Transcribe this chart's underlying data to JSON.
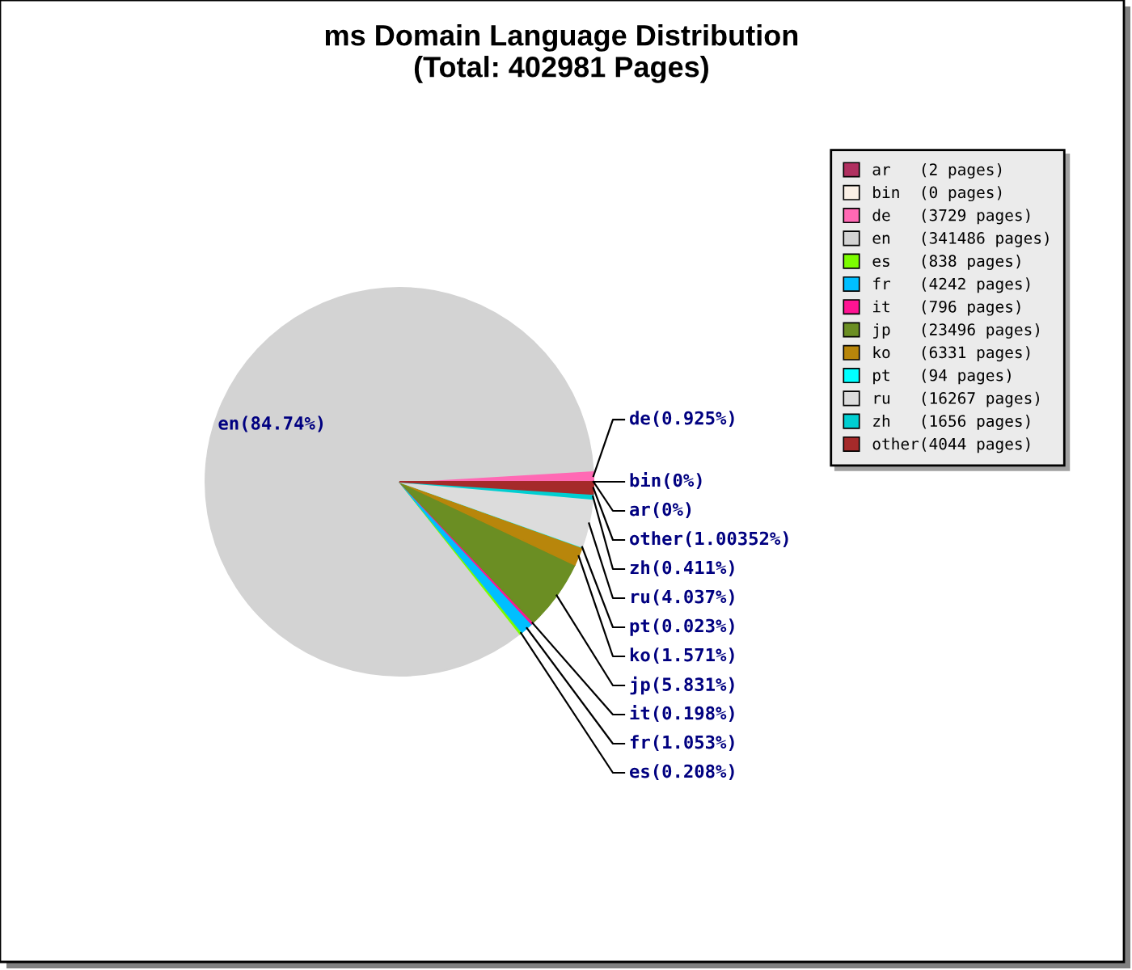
{
  "chart_data": {
    "type": "pie",
    "title": "ms Domain Language Distribution\n(Total: 402981 Pages)",
    "categories": [
      "ar   (2 pages)",
      "bin  (0 pages)",
      "de   (3729 pages)",
      "en   (341486 pages)",
      "es   (838 pages)",
      "fr   (4242 pages)",
      "it   (796 pages)",
      "jp   (23496 pages)",
      "ko   (6331 pages)",
      "pt   (94 pages)",
      "ru   (16267 pages)",
      "zh   (1656 pages)",
      "other(4044 pages)"
    ],
    "values": [
      2,
      0,
      3729,
      341486,
      838,
      4242,
      796,
      23496,
      6331,
      94,
      16267,
      1656,
      4044
    ],
    "colors": [
      "#b03060",
      "#faf0e6",
      "#ff69b4",
      "#d3d3d3",
      "#7cfc00",
      "#00bfff",
      "#ff1493",
      "#6b8e23",
      "#b8860b",
      "#00ffff",
      "#dcdcdc",
      "#00ced1",
      "#a52a2a"
    ],
    "value_labels": [
      "ar(0%)",
      "bin(0%)",
      "de(0.925%)",
      "en(84.74%)",
      "es(0.208%)",
      "fr(1.053%)",
      "it(0.198%)",
      "jp(5.831%)",
      "ko(1.571%)",
      "pt(0.023%)",
      "ru(4.037%)",
      "zh(0.411%)",
      "other(1.00352%)"
    ],
    "legend": "top right"
  }
}
